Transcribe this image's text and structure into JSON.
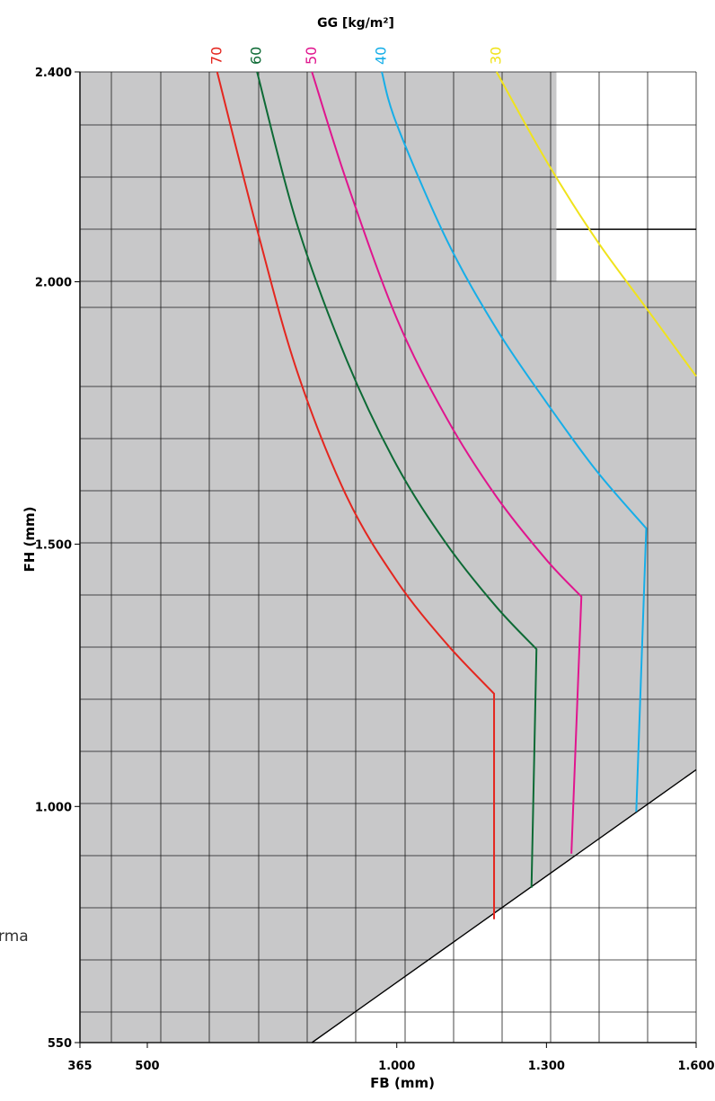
{
  "chart_data": {
    "type": "line",
    "title": "GG [kg/m²]",
    "xlabel": "FB (mm)",
    "ylabel": "FH (mm)",
    "xlim": [
      365,
      1600
    ],
    "ylim": [
      550,
      2400
    ],
    "x_ticks": [
      {
        "value": 365,
        "label": "365"
      },
      {
        "value": 500,
        "label": "500"
      },
      {
        "value": 1000,
        "label": "1.000"
      },
      {
        "value": 1300,
        "label": "1.300"
      },
      {
        "value": 1600,
        "label": "1.600"
      }
    ],
    "y_ticks": [
      {
        "value": 550,
        "label": "550"
      },
      {
        "value": 1000,
        "label": "1.000"
      },
      {
        "value": 1500,
        "label": "1.500"
      },
      {
        "value": 2000,
        "label": "2.000"
      },
      {
        "value": 2400,
        "label": "2.400"
      }
    ],
    "grid": true,
    "colors": {
      "background_region": "#c8c8c9",
      "grid": "#1a1a1a",
      "boundary": "#000000"
    },
    "series": [
      {
        "name": "70",
        "color": "#e4261f",
        "points": [
          [
            640,
            2400
          ],
          [
            720,
            2100
          ],
          [
            800,
            1830
          ],
          [
            900,
            1590
          ],
          [
            1000,
            1430
          ],
          [
            1100,
            1310
          ],
          [
            1195,
            1215
          ],
          [
            1195,
            785
          ]
        ]
      },
      {
        "name": "60",
        "color": "#0d6a35",
        "points": [
          [
            720,
            2400
          ],
          [
            800,
            2110
          ],
          [
            900,
            1850
          ],
          [
            1000,
            1650
          ],
          [
            1100,
            1500
          ],
          [
            1200,
            1380
          ],
          [
            1280,
            1300
          ],
          [
            1270,
            845
          ]
        ]
      },
      {
        "name": "50",
        "color": "#e0158e",
        "points": [
          [
            830,
            2400
          ],
          [
            900,
            2190
          ],
          [
            1000,
            1930
          ],
          [
            1100,
            1740
          ],
          [
            1200,
            1590
          ],
          [
            1300,
            1470
          ],
          [
            1370,
            1400
          ],
          [
            1350,
            910
          ]
        ]
      },
      {
        "name": "40",
        "color": "#16aee8",
        "points": [
          [
            970,
            2400
          ],
          [
            1000,
            2300
          ],
          [
            1100,
            2080
          ],
          [
            1200,
            1910
          ],
          [
            1300,
            1770
          ],
          [
            1400,
            1640
          ],
          [
            1500,
            1530
          ],
          [
            1480,
            990
          ]
        ]
      },
      {
        "name": "30",
        "color": "#f0e31c",
        "points": [
          [
            1200,
            2400
          ],
          [
            1300,
            2230
          ],
          [
            1400,
            2080
          ],
          [
            1500,
            1950
          ],
          [
            1600,
            1820
          ]
        ]
      }
    ],
    "white_region": {
      "x": [
        1320,
        1600
      ],
      "y": [
        2000,
        2400
      ]
    },
    "boundary_line": {
      "from": [
        830,
        550
      ],
      "to": [
        1600,
        1070
      ]
    },
    "extra_hline": {
      "y": 2100,
      "x": [
        1320,
        1600
      ]
    }
  },
  "fragment_text": "rma"
}
